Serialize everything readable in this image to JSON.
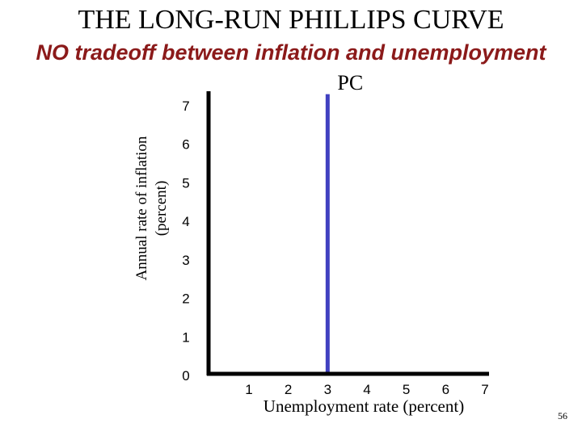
{
  "slide": {
    "title": "THE LONG-RUN PHILLIPS CURVE",
    "subtitle": "NO tradeoff between inflation and unemployment",
    "page_number": "56"
  },
  "chart_data": {
    "type": "line",
    "title": "THE LONG-RUN PHILLIPS CURVE",
    "subtitle": "NO tradeoff between inflation and unemployment",
    "xlabel": "Unemployment rate (percent)",
    "ylabel_lines": [
      "Annual rate of inflation",
      "(percent)"
    ],
    "x_ticks": [
      "1",
      "2",
      "3",
      "4",
      "5",
      "6",
      "7"
    ],
    "y_ticks": [
      "0",
      "1",
      "2",
      "3",
      "4",
      "5",
      "6",
      "7"
    ],
    "xlim": [
      0,
      7.5
    ],
    "ylim": [
      0,
      7.3
    ],
    "grid": false,
    "series": [
      {
        "name": "PC",
        "color": "#4040c0",
        "x": [
          3,
          3
        ],
        "y": [
          0,
          7.3
        ]
      }
    ]
  }
}
